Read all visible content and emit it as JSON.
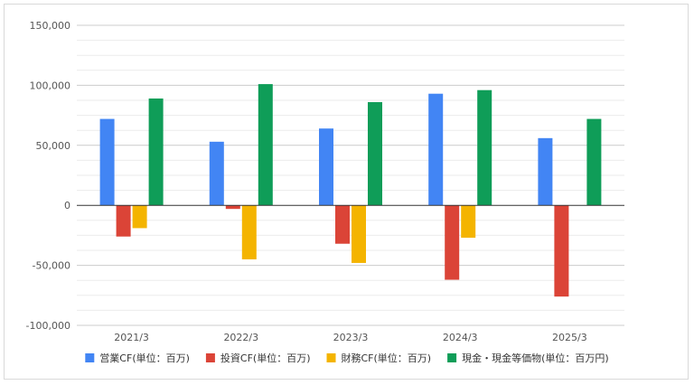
{
  "chart_data": {
    "type": "bar",
    "categories": [
      "2021/3",
      "2022/3",
      "2023/3",
      "2024/3",
      "2025/3"
    ],
    "series": [
      {
        "name": "営業CF(単位：百万)",
        "color": "#4285f4",
        "values": [
          72000,
          53000,
          64000,
          93000,
          56000
        ]
      },
      {
        "name": "投資CF(単位：百万)",
        "color": "#db4437",
        "values": [
          -26000,
          -3000,
          -32000,
          -62000,
          -76000
        ]
      },
      {
        "name": "財務CF(単位：百万)",
        "color": "#f4b400",
        "values": [
          -19000,
          -45000,
          -48000,
          -27000,
          0
        ]
      },
      {
        "name": "現金・現金等価物(単位：百万円)",
        "color": "#0f9d58",
        "values": [
          89000,
          101000,
          86000,
          96000,
          72000
        ]
      }
    ],
    "y_ticks": [
      "150,000",
      "100,000",
      "50,000",
      "0",
      "-50,000",
      "-100,000"
    ],
    "y_tick_values": [
      150000,
      100000,
      50000,
      0,
      -50000,
      -100000
    ],
    "ylim": [
      -100000,
      150000
    ],
    "minor_grid_step": 12500,
    "legend_position": "bottom",
    "grid": true,
    "title": "",
    "xlabel": "",
    "ylabel": ""
  }
}
